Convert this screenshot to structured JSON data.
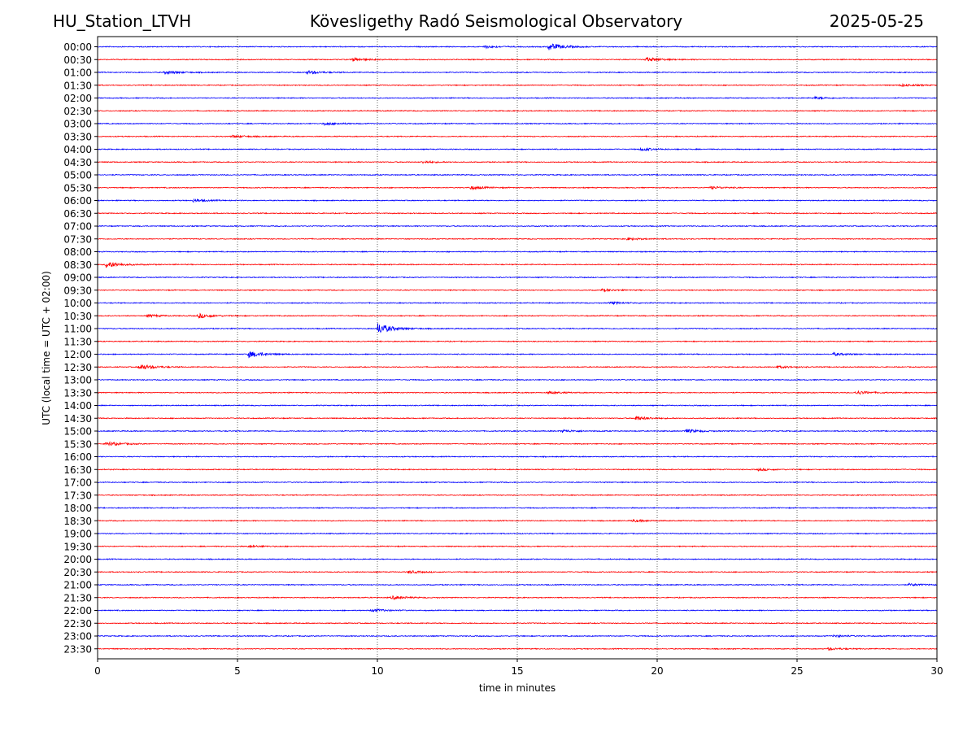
{
  "header": {
    "station": "HU_Station_LTVH",
    "title": "Kövesligethy Radó Seismological Observatory",
    "date": "2025-05-25"
  },
  "colors": {
    "trace_a": "#0000ff",
    "trace_b": "#ff0000",
    "grid": "#000000"
  },
  "chart_data": {
    "type": "line",
    "title": "Kövesligethy Radó Seismological Observatory",
    "xlabel": "time in minutes",
    "ylabel": "UTC (local time = UTC + 02:00)",
    "xlim": [
      0,
      30
    ],
    "x_ticks": [
      0,
      5,
      10,
      15,
      20,
      25,
      30
    ],
    "grid": "vertical dotted lines at 5-minute ticks",
    "legend": "none",
    "series_color_pattern": [
      "blue",
      "red"
    ],
    "rows": [
      "00:00",
      "00:30",
      "01:00",
      "01:30",
      "02:00",
      "02:30",
      "03:00",
      "03:30",
      "04:00",
      "04:30",
      "05:00",
      "05:30",
      "06:00",
      "06:30",
      "07:00",
      "07:30",
      "08:00",
      "08:30",
      "09:00",
      "09:30",
      "10:00",
      "10:30",
      "11:00",
      "11:30",
      "12:00",
      "12:30",
      "13:00",
      "13:30",
      "14:00",
      "14:30",
      "15:00",
      "15:30",
      "16:00",
      "16:30",
      "17:00",
      "17:30",
      "18:00",
      "18:30",
      "19:00",
      "19:30",
      "20:00",
      "20:30",
      "21:00",
      "21:30",
      "22:00",
      "22:30",
      "23:00",
      "23:30"
    ],
    "events": [
      {
        "row": "00:00",
        "minute": 16.1,
        "amplitude": 1.0
      },
      {
        "row": "00:00",
        "minute": 13.8,
        "amplitude": 0.35
      },
      {
        "row": "00:30",
        "minute": 9.1,
        "amplitude": 0.45
      },
      {
        "row": "00:30",
        "minute": 19.6,
        "amplitude": 0.55
      },
      {
        "row": "01:00",
        "minute": 2.4,
        "amplitude": 0.45
      },
      {
        "row": "01:00",
        "minute": 7.5,
        "amplitude": 0.45
      },
      {
        "row": "01:30",
        "minute": 28.7,
        "amplitude": 0.35
      },
      {
        "row": "02:00",
        "minute": 25.6,
        "amplitude": 0.3
      },
      {
        "row": "03:00",
        "minute": 8.1,
        "amplitude": 0.4
      },
      {
        "row": "03:30",
        "minute": 4.8,
        "amplitude": 0.35
      },
      {
        "row": "04:00",
        "minute": 19.4,
        "amplitude": 0.4
      },
      {
        "row": "04:30",
        "minute": 11.6,
        "amplitude": 0.3
      },
      {
        "row": "05:30",
        "minute": 13.3,
        "amplitude": 0.45
      },
      {
        "row": "05:30",
        "minute": 21.9,
        "amplitude": 0.35
      },
      {
        "row": "06:00",
        "minute": 3.4,
        "amplitude": 0.35
      },
      {
        "row": "07:30",
        "minute": 18.9,
        "amplitude": 0.3
      },
      {
        "row": "08:30",
        "minute": 0.3,
        "amplitude": 0.9
      },
      {
        "row": "09:30",
        "minute": 18.0,
        "amplitude": 0.3
      },
      {
        "row": "10:00",
        "minute": 18.3,
        "amplitude": 0.3
      },
      {
        "row": "10:30",
        "minute": 3.6,
        "amplitude": 0.6
      },
      {
        "row": "10:30",
        "minute": 1.8,
        "amplitude": 0.35
      },
      {
        "row": "11:00",
        "minute": 10.0,
        "amplitude": 1.5
      },
      {
        "row": "12:00",
        "minute": 5.4,
        "amplitude": 0.9
      },
      {
        "row": "12:00",
        "minute": 26.3,
        "amplitude": 0.35
      },
      {
        "row": "12:30",
        "minute": 1.5,
        "amplitude": 0.8
      },
      {
        "row": "12:30",
        "minute": 24.3,
        "amplitude": 0.3
      },
      {
        "row": "13:30",
        "minute": 27.1,
        "amplitude": 0.5
      },
      {
        "row": "13:30",
        "minute": 16.1,
        "amplitude": 0.3
      },
      {
        "row": "14:30",
        "minute": 19.2,
        "amplitude": 0.6
      },
      {
        "row": "15:00",
        "minute": 21.0,
        "amplitude": 0.5
      },
      {
        "row": "15:00",
        "minute": 16.6,
        "amplitude": 0.35
      },
      {
        "row": "15:30",
        "minute": 0.3,
        "amplitude": 0.6
      },
      {
        "row": "16:30",
        "minute": 23.6,
        "amplitude": 0.3
      },
      {
        "row": "18:30",
        "minute": 19.1,
        "amplitude": 0.35
      },
      {
        "row": "19:30",
        "minute": 5.4,
        "amplitude": 0.3
      },
      {
        "row": "20:30",
        "minute": 11.1,
        "amplitude": 0.35
      },
      {
        "row": "21:00",
        "minute": 29.0,
        "amplitude": 0.3
      },
      {
        "row": "21:30",
        "minute": 10.5,
        "amplitude": 0.45
      },
      {
        "row": "22:00",
        "minute": 9.8,
        "amplitude": 0.4
      },
      {
        "row": "23:00",
        "minute": 26.3,
        "amplitude": 0.3
      },
      {
        "row": "23:30",
        "minute": 26.1,
        "amplitude": 0.3
      }
    ]
  }
}
